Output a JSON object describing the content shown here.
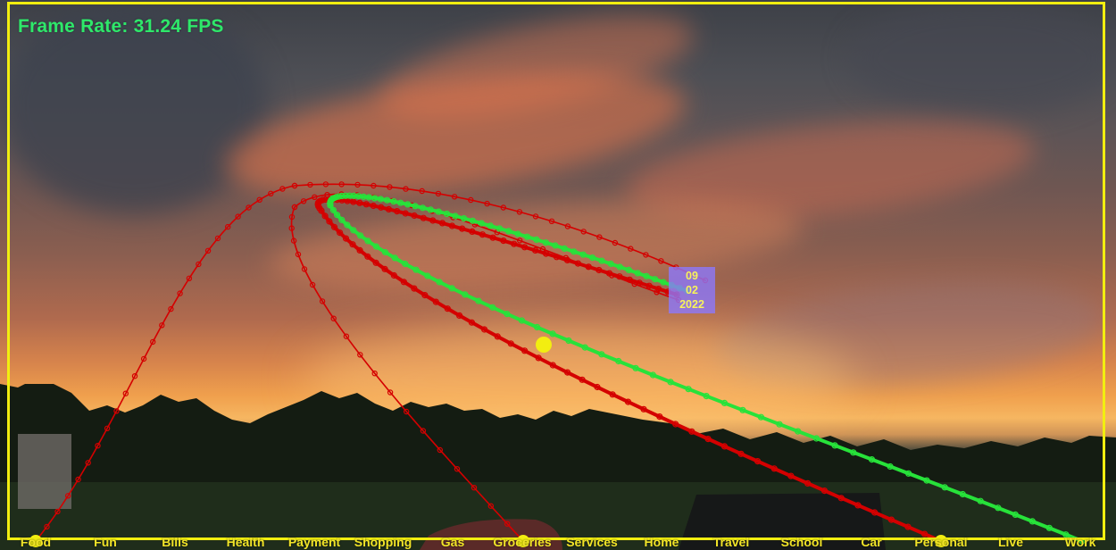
{
  "hud": {
    "frame_rate": "Frame Rate: 31.24 FPS"
  },
  "date_box": {
    "month": "09",
    "day": "02",
    "year": "2022"
  },
  "category_labels": [
    "Food",
    "Fun",
    "Bills",
    "Health",
    "Payment",
    "Shopping",
    "Gas",
    "Groceries",
    "Services",
    "Home",
    "Travel",
    "School",
    "Car",
    "Personal",
    "Live",
    "Work"
  ],
  "colors": {
    "frame": "#f2ee10",
    "hud_text": "#2ee86a",
    "curve_red": "#d40000",
    "curve_green": "#27e23a",
    "label_text": "#f1e428",
    "date_box_bg": "#8c78ff"
  }
}
